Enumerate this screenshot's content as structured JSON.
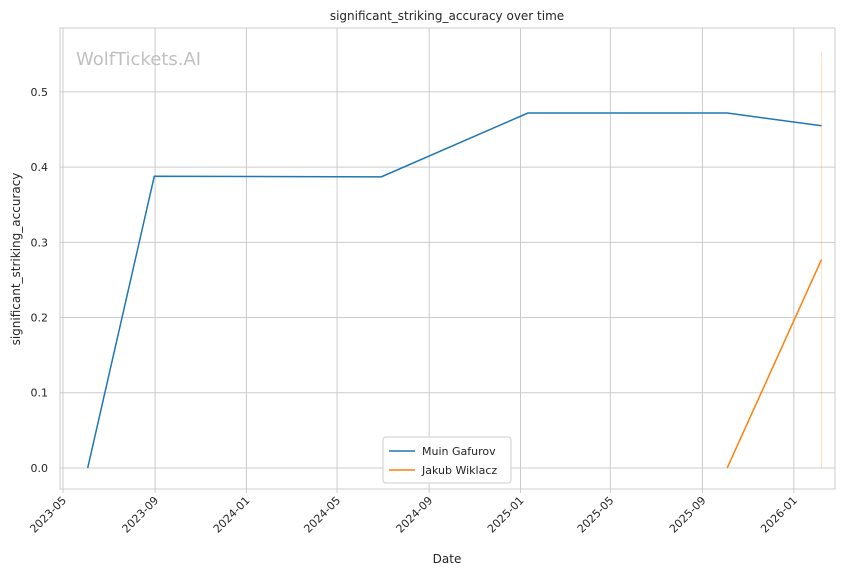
{
  "chart_data": {
    "type": "line",
    "title": "significant_striking_accuracy over time",
    "xlabel": "Date",
    "ylabel": "significant_striking_accuracy",
    "watermark": "WolfTickets.AI",
    "x_ticks": [
      "2023-05",
      "2023-09",
      "2024-01",
      "2024-05",
      "2024-09",
      "2025-01",
      "2025-05",
      "2025-09",
      "2026-01"
    ],
    "y_ticks": [
      "0.0",
      "0.1",
      "0.2",
      "0.3",
      "0.4",
      "0.5"
    ],
    "xlim": [
      "2023-04-27",
      "2026-02-25"
    ],
    "ylim": [
      -0.028,
      0.585
    ],
    "grid": true,
    "legend_position": "bottom-center",
    "series": [
      {
        "name": "Muin Gafurov",
        "color": "#1f77b4",
        "points": [
          {
            "x": "2023-06-03",
            "y": 0.0
          },
          {
            "x": "2023-08-31",
            "y": 0.388
          },
          {
            "x": "2024-06-29",
            "y": 0.387
          },
          {
            "x": "2025-01-11",
            "y": 0.472
          },
          {
            "x": "2025-10-04",
            "y": 0.472
          },
          {
            "x": "2026-02-07",
            "y": 0.455
          }
        ]
      },
      {
        "name": "Jakub Wiklacz",
        "color": "#ff7f0e",
        "points": [
          {
            "x": "2025-10-04",
            "y": 0.0
          },
          {
            "x": "2026-02-07",
            "y": 0.277
          }
        ]
      }
    ]
  }
}
